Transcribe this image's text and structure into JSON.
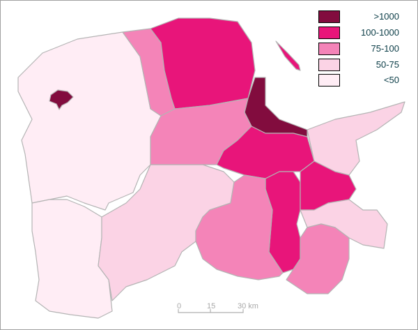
{
  "legend": [
    {
      "label": ">1000",
      "color": "#820c3e"
    },
    {
      "label": "100-1000",
      "color": "#e8157a"
    },
    {
      "label": "75-100",
      "color": "#f484b8"
    },
    {
      "label": "50-75",
      "color": "#fbd3e5"
    },
    {
      "label": "<50",
      "color": "#ffedf5"
    }
  ],
  "scale_bar": {
    "ticks": [
      "0",
      "15",
      "30 km"
    ]
  }
}
